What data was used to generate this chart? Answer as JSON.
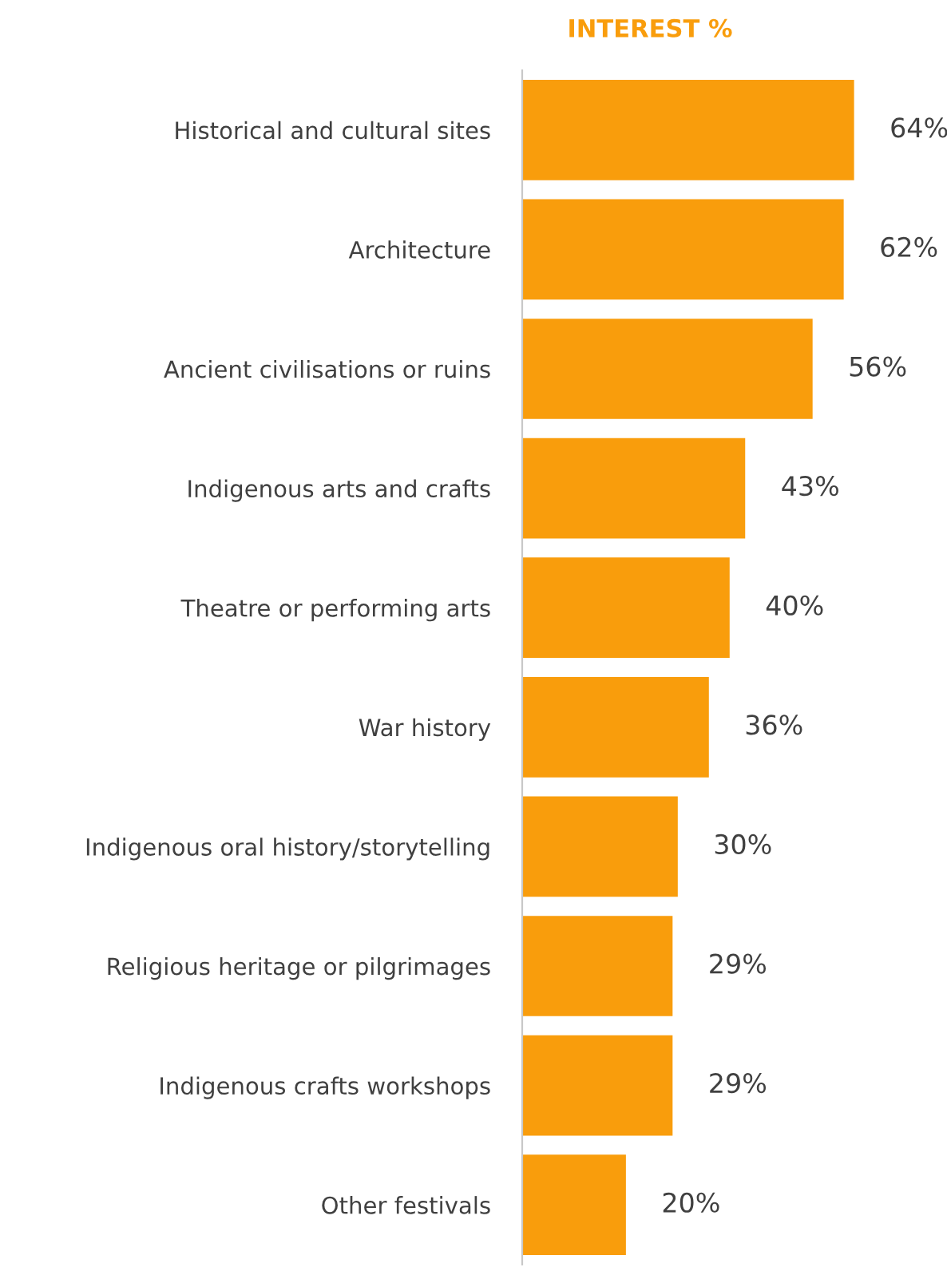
{
  "chart_data": {
    "type": "bar",
    "orientation": "horizontal",
    "title": "INTEREST %",
    "categories": [
      "Historical and cultural sites",
      "Architecture",
      "Ancient civilisations or ruins",
      "Indigenous arts and crafts",
      "Theatre or performing arts",
      "War history",
      "Indigenous oral history/storytelling",
      "Religious heritage or pilgrimages",
      "Indigenous crafts workshops",
      "Other festivals"
    ],
    "values": [
      64,
      62,
      56,
      43,
      40,
      36,
      30,
      29,
      29,
      20
    ],
    "value_labels": [
      "64%",
      "62%",
      "56%",
      "43%",
      "40%",
      "36%",
      "30%",
      "29%",
      "29%",
      "20%"
    ],
    "color": "#f99d0c",
    "grid": false,
    "legend": false
  }
}
